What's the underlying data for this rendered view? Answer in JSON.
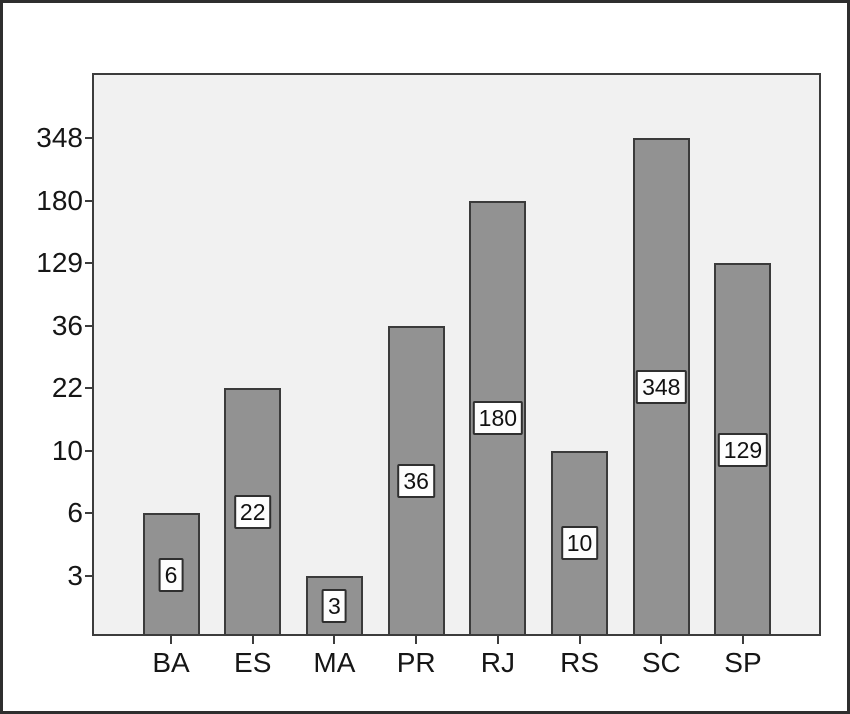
{
  "chart_data": {
    "type": "bar",
    "title": "",
    "xlabel": "",
    "ylabel": "",
    "categories": [
      "BA",
      "ES",
      "MA",
      "PR",
      "RJ",
      "RS",
      "SC",
      "SP"
    ],
    "values": [
      6,
      22,
      3,
      36,
      180,
      10,
      348,
      129
    ],
    "bar_labels": [
      "6",
      "22",
      "3",
      "36",
      "180",
      "10",
      "348",
      "129"
    ],
    "y_tick_labels_top_down": [
      "348",
      "180",
      "129",
      "36",
      "22",
      "10",
      "6",
      "3"
    ],
    "y_scale_note": "ticks placed at sorted data values, evenly spaced (rank scale)",
    "grid": false,
    "legend": null,
    "colors": {
      "page_background": "#ffffff",
      "outer_border": "#2e2e2e",
      "plot_background": "#f1f1f1",
      "plot_border": "#3c3c3c",
      "bar_fill": "#929292",
      "bar_border": "#3b3b3b",
      "value_box_background": "#fdfdfd",
      "value_box_border": "#2f2f2f",
      "text": "#161616"
    }
  }
}
